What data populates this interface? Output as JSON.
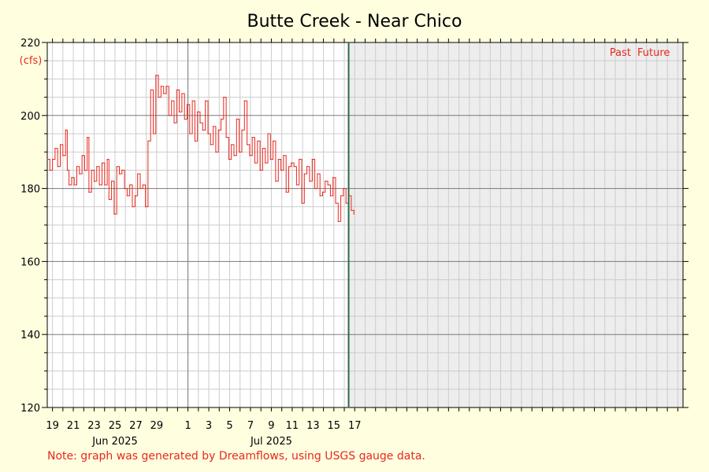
{
  "chart_data": {
    "type": "line",
    "title": "Butte Creek - Near Chico",
    "ylabel": "(cfs)",
    "ylim": [
      120,
      220
    ],
    "yticks": [
      120,
      140,
      160,
      180,
      200,
      220
    ],
    "xlim": [
      "2025-05-18T12:00",
      "2025-07-18T12:00"
    ],
    "x_tick_labels": [
      {
        "date": "2025-05-19",
        "label": "19"
      },
      {
        "date": "2025-05-21",
        "label": "21"
      },
      {
        "date": "2025-05-23",
        "label": "23"
      },
      {
        "date": "2025-05-25",
        "label": "25"
      },
      {
        "date": "2025-05-27",
        "label": "27"
      },
      {
        "date": "2025-05-29",
        "label": "29"
      },
      {
        "date": "2025-06-01",
        "label": "1"
      },
      {
        "date": "2025-06-03",
        "label": "3"
      },
      {
        "date": "2025-06-05",
        "label": "5"
      },
      {
        "date": "2025-06-07",
        "label": "7"
      },
      {
        "date": "2025-06-09",
        "label": "9"
      },
      {
        "date": "2025-06-11",
        "label": "11"
      },
      {
        "date": "2025-06-13",
        "label": "13"
      },
      {
        "date": "2025-06-15",
        "label": "15"
      },
      {
        "date": "2025-06-17",
        "label": "17"
      }
    ],
    "month_labels": [
      {
        "date": "2025-05-25",
        "label": "Jun 2025"
      },
      {
        "date": "2025-06-09",
        "label": "Jul 2025"
      }
    ],
    "month_boundaries": [
      "2025-06-01"
    ],
    "now": "2025-06-16T10:00",
    "grid": true,
    "series": [
      {
        "color": "#e8281e",
        "points": [
          [
            "2025-05-18T12:00",
            188
          ],
          [
            "2025-05-18T18:00",
            185
          ],
          [
            "2025-05-19T00:00",
            188
          ],
          [
            "2025-05-19T06:00",
            191
          ],
          [
            "2025-05-19T12:00",
            186
          ],
          [
            "2025-05-19T18:00",
            192
          ],
          [
            "2025-05-20T00:00",
            189
          ],
          [
            "2025-05-20T06:00",
            196
          ],
          [
            "2025-05-20T10:00",
            185
          ],
          [
            "2025-05-20T14:00",
            181
          ],
          [
            "2025-05-20T20:00",
            183
          ],
          [
            "2025-05-21T02:00",
            181
          ],
          [
            "2025-05-21T08:00",
            186
          ],
          [
            "2025-05-21T14:00",
            184
          ],
          [
            "2025-05-21T20:00",
            189
          ],
          [
            "2025-05-22T02:00",
            185
          ],
          [
            "2025-05-22T08:00",
            194
          ],
          [
            "2025-05-22T12:00",
            179
          ],
          [
            "2025-05-22T18:00",
            185
          ],
          [
            "2025-05-23T00:00",
            182
          ],
          [
            "2025-05-23T06:00",
            186
          ],
          [
            "2025-05-23T12:00",
            181
          ],
          [
            "2025-05-23T18:00",
            187
          ],
          [
            "2025-05-24T00:00",
            181
          ],
          [
            "2025-05-24T06:00",
            188
          ],
          [
            "2025-05-24T10:00",
            177
          ],
          [
            "2025-05-24T16:00",
            182
          ],
          [
            "2025-05-24T22:00",
            173
          ],
          [
            "2025-05-25T04:00",
            186
          ],
          [
            "2025-05-25T10:00",
            184
          ],
          [
            "2025-05-25T16:00",
            185
          ],
          [
            "2025-05-25T22:00",
            180
          ],
          [
            "2025-05-26T04:00",
            178
          ],
          [
            "2025-05-26T10:00",
            181
          ],
          [
            "2025-05-26T16:00",
            175
          ],
          [
            "2025-05-26T22:00",
            178
          ],
          [
            "2025-05-27T04:00",
            184
          ],
          [
            "2025-05-27T10:00",
            180
          ],
          [
            "2025-05-27T16:00",
            181
          ],
          [
            "2025-05-27T22:00",
            175
          ],
          [
            "2025-05-28T04:00",
            193
          ],
          [
            "2025-05-28T10:00",
            207
          ],
          [
            "2025-05-28T16:00",
            195
          ],
          [
            "2025-05-28T22:00",
            211
          ],
          [
            "2025-05-29T04:00",
            205
          ],
          [
            "2025-05-29T10:00",
            208
          ],
          [
            "2025-05-29T16:00",
            206
          ],
          [
            "2025-05-29T22:00",
            208
          ],
          [
            "2025-05-30T04:00",
            200
          ],
          [
            "2025-05-30T10:00",
            204
          ],
          [
            "2025-05-30T16:00",
            198
          ],
          [
            "2025-05-30T22:00",
            207
          ],
          [
            "2025-05-31T04:00",
            201
          ],
          [
            "2025-05-31T10:00",
            206
          ],
          [
            "2025-05-31T16:00",
            199
          ],
          [
            "2025-05-31T22:00",
            203
          ],
          [
            "2025-06-01T04:00",
            195
          ],
          [
            "2025-06-01T10:00",
            204
          ],
          [
            "2025-06-01T16:00",
            193
          ],
          [
            "2025-06-01T22:00",
            201
          ],
          [
            "2025-06-02T04:00",
            198
          ],
          [
            "2025-06-02T10:00",
            196
          ],
          [
            "2025-06-02T16:00",
            204
          ],
          [
            "2025-06-02T22:00",
            195
          ],
          [
            "2025-06-03T04:00",
            192
          ],
          [
            "2025-06-03T10:00",
            197
          ],
          [
            "2025-06-03T16:00",
            190
          ],
          [
            "2025-06-03T22:00",
            196
          ],
          [
            "2025-06-04T04:00",
            199
          ],
          [
            "2025-06-04T10:00",
            205
          ],
          [
            "2025-06-04T16:00",
            194
          ],
          [
            "2025-06-04T22:00",
            188
          ],
          [
            "2025-06-05T04:00",
            192
          ],
          [
            "2025-06-05T10:00",
            189
          ],
          [
            "2025-06-05T16:00",
            199
          ],
          [
            "2025-06-05T22:00",
            190
          ],
          [
            "2025-06-06T04:00",
            196
          ],
          [
            "2025-06-06T10:00",
            204
          ],
          [
            "2025-06-06T16:00",
            192
          ],
          [
            "2025-06-06T22:00",
            189
          ],
          [
            "2025-06-07T04:00",
            194
          ],
          [
            "2025-06-07T10:00",
            187
          ],
          [
            "2025-06-07T16:00",
            193
          ],
          [
            "2025-06-07T22:00",
            185
          ],
          [
            "2025-06-08T04:00",
            191
          ],
          [
            "2025-06-08T10:00",
            187
          ],
          [
            "2025-06-08T16:00",
            195
          ],
          [
            "2025-06-08T22:00",
            188
          ],
          [
            "2025-06-09T04:00",
            193
          ],
          [
            "2025-06-09T10:00",
            182
          ],
          [
            "2025-06-09T16:00",
            188
          ],
          [
            "2025-06-09T22:00",
            185
          ],
          [
            "2025-06-10T04:00",
            189
          ],
          [
            "2025-06-10T10:00",
            179
          ],
          [
            "2025-06-10T16:00",
            186
          ],
          [
            "2025-06-10T22:00",
            187
          ],
          [
            "2025-06-11T04:00",
            186
          ],
          [
            "2025-06-11T10:00",
            181
          ],
          [
            "2025-06-11T16:00",
            188
          ],
          [
            "2025-06-11T22:00",
            176
          ],
          [
            "2025-06-12T04:00",
            184
          ],
          [
            "2025-06-12T10:00",
            186
          ],
          [
            "2025-06-12T16:00",
            182
          ],
          [
            "2025-06-12T22:00",
            188
          ],
          [
            "2025-06-13T04:00",
            180
          ],
          [
            "2025-06-13T10:00",
            184
          ],
          [
            "2025-06-13T16:00",
            178
          ],
          [
            "2025-06-13T22:00",
            179
          ],
          [
            "2025-06-14T04:00",
            182
          ],
          [
            "2025-06-14T10:00",
            181
          ],
          [
            "2025-06-14T16:00",
            178
          ],
          [
            "2025-06-14T22:00",
            183
          ],
          [
            "2025-06-15T04:00",
            176
          ],
          [
            "2025-06-15T10:00",
            171
          ],
          [
            "2025-06-15T16:00",
            178
          ],
          [
            "2025-06-15T22:00",
            180
          ],
          [
            "2025-06-16T04:00",
            176
          ],
          [
            "2025-06-16T10:00",
            178
          ],
          [
            "2025-06-16T16:00",
            174
          ],
          [
            "2025-06-16T22:00",
            173
          ]
        ]
      }
    ]
  },
  "legend": {
    "past_label": "Past",
    "future_label": "Future"
  },
  "note": "Note: graph was generated by Dreamflows, using USGS gauge data."
}
